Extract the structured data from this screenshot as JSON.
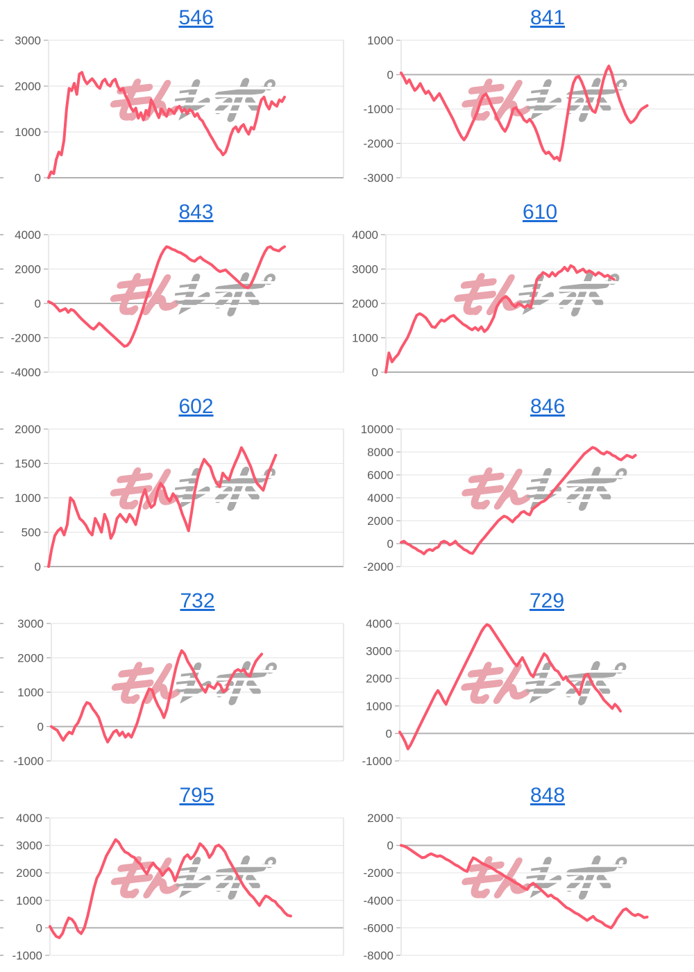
{
  "style": {
    "background": "#ffffff",
    "line_color": "#fa586e",
    "grid_color": "#e7e7e7",
    "zero_line_color": "#b0b0b0",
    "axis_border_color": "#dadada",
    "tick_color": "#a8a8a8",
    "label_color": "#595959",
    "title_link_color": "#1c6cd6"
  },
  "watermark": {
    "text": "みんレポ",
    "pink_color": "#eaa4ad",
    "gray_color": "#a9a9a9"
  },
  "chart_data": [
    {
      "title": "546",
      "type": "line",
      "legend": "none",
      "grid": "on",
      "yticks": [
        3000,
        2000,
        1000,
        0
      ],
      "ylim": [
        0,
        3000
      ],
      "x_span": 0.8,
      "values": [
        0,
        130,
        90,
        400,
        560,
        500,
        820,
        1500,
        1950,
        1900,
        2060,
        1820,
        2260,
        2300,
        2140,
        2050,
        2110,
        2160,
        2090,
        2000,
        1950,
        2100,
        2150,
        2040,
        2000,
        2110,
        2150,
        1990,
        1900,
        1950,
        1790,
        1690,
        1540,
        1450,
        1520,
        1300,
        1420,
        1260,
        1470,
        1360,
        1700,
        1590,
        1440,
        1310,
        1500,
        1410,
        1340,
        1500,
        1460,
        1400,
        1520,
        1560,
        1440,
        1500,
        1400,
        1490,
        1450,
        1340,
        1400,
        1290,
        1240,
        1130,
        1040,
        930,
        840,
        740,
        640,
        590,
        500,
        560,
        720,
        920,
        1060,
        1110,
        1000,
        1110,
        1160,
        1040,
        950,
        1100,
        1060,
        1260,
        1510,
        1700,
        1760,
        1590,
        1500,
        1660,
        1600,
        1560,
        1700,
        1660,
        1760
      ]
    },
    {
      "title": "841",
      "type": "line",
      "legend": "none",
      "grid": "on",
      "yticks": [
        1000,
        0,
        -1000,
        -2000,
        -3000
      ],
      "ylim": [
        -3000,
        1000
      ],
      "x_span": 0.84,
      "values": [
        50,
        -80,
        -250,
        -150,
        -320,
        -460,
        -380,
        -260,
        -420,
        -550,
        -480,
        -600,
        -750,
        -650,
        -550,
        -700,
        -850,
        -1000,
        -1150,
        -1300,
        -1480,
        -1650,
        -1800,
        -1900,
        -1780,
        -1600,
        -1420,
        -1250,
        -1050,
        -800,
        -620,
        -560,
        -700,
        -900,
        -1050,
        -1250,
        -1400,
        -1550,
        -1650,
        -1500,
        -1280,
        -1000,
        -960,
        -1080,
        -1180,
        -1320,
        -1380,
        -1300,
        -1400,
        -1550,
        -1750,
        -2000,
        -2200,
        -2300,
        -2250,
        -2350,
        -2450,
        -2400,
        -2500,
        -2100,
        -1600,
        -1100,
        -600,
        -250,
        -80,
        -50,
        -200,
        -400,
        -650,
        -900,
        -1050,
        -1100,
        -850,
        -500,
        -150,
        100,
        250,
        50,
        -250,
        -500,
        -750,
        -950,
        -1150,
        -1300,
        -1400,
        -1350,
        -1250,
        -1100,
        -1000,
        -950,
        -900
      ]
    },
    {
      "title": "843",
      "type": "line",
      "legend": "none",
      "grid": "on",
      "yticks": [
        4000,
        2000,
        0,
        -2000,
        -4000
      ],
      "ylim": [
        -4000,
        4000
      ],
      "x_span": 0.8,
      "values": [
        100,
        30,
        -80,
        -250,
        -450,
        -380,
        -300,
        -520,
        -350,
        -420,
        -600,
        -780,
        -950,
        -1100,
        -1250,
        -1400,
        -1500,
        -1350,
        -1150,
        -1280,
        -1450,
        -1600,
        -1750,
        -1900,
        -2050,
        -2200,
        -2350,
        -2500,
        -2450,
        -2250,
        -1900,
        -1500,
        -1050,
        -600,
        -100,
        400,
        900,
        1400,
        1900,
        2400,
        2800,
        3100,
        3300,
        3250,
        3150,
        3100,
        3000,
        2950,
        2850,
        2750,
        2600,
        2500,
        2450,
        2600,
        2700,
        2550,
        2450,
        2350,
        2250,
        2100,
        1950,
        1850,
        1900,
        1950,
        1800,
        1650,
        1500,
        1350,
        1200,
        1050,
        950,
        900,
        1100,
        1450,
        1850,
        2250,
        2650,
        3000,
        3250,
        3300,
        3150,
        3100,
        3050,
        3200,
        3300
      ]
    },
    {
      "title": "610",
      "type": "line",
      "legend": "none",
      "grid": "on",
      "yticks": [
        4000,
        3000,
        2000,
        1000,
        0
      ],
      "ylim": [
        0,
        4000
      ],
      "x_span": 0.74,
      "values": [
        0,
        560,
        300,
        420,
        520,
        700,
        850,
        1000,
        1200,
        1450,
        1650,
        1700,
        1650,
        1580,
        1450,
        1320,
        1300,
        1420,
        1520,
        1480,
        1550,
        1620,
        1650,
        1560,
        1480,
        1400,
        1350,
        1280,
        1230,
        1300,
        1220,
        1320,
        1180,
        1260,
        1420,
        1600,
        1900,
        2050,
        2150,
        2200,
        2120,
        1980,
        1900,
        2000,
        1950,
        1880,
        1950,
        1880,
        2250,
        2700,
        2780,
        2900,
        2850,
        2780,
        2900,
        2800,
        2900,
        2950,
        3050,
        2950,
        3100,
        3050,
        2900,
        2950,
        3000,
        2900,
        2950,
        2900,
        2820,
        2900,
        2850,
        2780,
        2820,
        2750,
        2700
      ]
    },
    {
      "title": "602",
      "type": "line",
      "legend": "none",
      "grid": "on",
      "yticks": [
        2000,
        1500,
        1000,
        500,
        0
      ],
      "ylim": [
        0,
        2000
      ],
      "x_span": 0.77,
      "values": [
        0,
        260,
        450,
        520,
        560,
        460,
        610,
        1000,
        950,
        820,
        700,
        660,
        600,
        510,
        460,
        700,
        610,
        500,
        760,
        650,
        410,
        500,
        700,
        760,
        700,
        650,
        760,
        700,
        610,
        800,
        1000,
        1120,
        950,
        860,
        900,
        1100,
        1210,
        1150,
        1010,
        950,
        1060,
        1000,
        900,
        760,
        650,
        520,
        800,
        1100,
        1310,
        1450,
        1560,
        1500,
        1450,
        1310,
        1210,
        1160,
        1360,
        1300,
        1260,
        1400,
        1510,
        1610,
        1730,
        1650,
        1550,
        1450,
        1310,
        1210,
        1160,
        1110,
        1260,
        1400,
        1510,
        1620
      ]
    },
    {
      "title": "846",
      "type": "line",
      "legend": "none",
      "grid": "on",
      "yticks": [
        10000,
        8000,
        6000,
        4000,
        2000,
        0,
        -2000
      ],
      "ylim": [
        -2000,
        10000
      ],
      "x_span": 0.8,
      "values": [
        100,
        210,
        0,
        -110,
        -300,
        -410,
        -600,
        -710,
        -900,
        -610,
        -500,
        -610,
        -400,
        -300,
        100,
        210,
        100,
        -110,
        0,
        210,
        -110,
        -300,
        -510,
        -610,
        -800,
        -860,
        -500,
        -110,
        210,
        500,
        800,
        1110,
        1400,
        1710,
        2000,
        2210,
        2400,
        2310,
        2110,
        1900,
        2210,
        2400,
        2710,
        2810,
        2610,
        2510,
        3010,
        3210,
        3400,
        3610,
        3710,
        3910,
        4210,
        4510,
        4810,
        5110,
        5410,
        5710,
        6010,
        6310,
        6610,
        6910,
        7210,
        7510,
        7810,
        8010,
        8210,
        8400,
        8310,
        8110,
        7910,
        7810,
        8010,
        7910,
        7710,
        7610,
        7410,
        7310,
        7510,
        7710,
        7610,
        7510,
        7710
      ]
    },
    {
      "title": "732",
      "type": "line",
      "legend": "none",
      "grid": "on",
      "yticks": [
        3000,
        2000,
        1000,
        0,
        -1000
      ],
      "ylim": [
        -1000,
        3000
      ],
      "x_span": 0.72,
      "values": [
        0,
        -60,
        -110,
        -260,
        -400,
        -260,
        -160,
        -210,
        0,
        110,
        310,
        560,
        700,
        660,
        510,
        400,
        260,
        0,
        -260,
        -450,
        -310,
        -160,
        -110,
        -260,
        -160,
        -310,
        -210,
        -310,
        -110,
        110,
        400,
        700,
        900,
        1100,
        1060,
        810,
        610,
        460,
        260,
        510,
        900,
        1310,
        1700,
        2000,
        2210,
        2110,
        1900,
        1760,
        1610,
        1410,
        1260,
        1110,
        1000,
        1210,
        1160,
        1110,
        1260,
        1210,
        1010,
        1060,
        1310,
        1460,
        1610,
        1660,
        1610,
        1660,
        1510,
        1460,
        1710,
        1900,
        2010,
        2110
      ]
    },
    {
      "title": "729",
      "type": "line",
      "legend": "none",
      "grid": "on",
      "yticks": [
        4000,
        3000,
        2000,
        1000,
        0,
        -1000
      ],
      "ylim": [
        -1000,
        4000
      ],
      "x_span": 0.75,
      "values": [
        50,
        -110,
        -310,
        -560,
        -410,
        -210,
        0,
        210,
        410,
        610,
        810,
        1010,
        1210,
        1410,
        1560,
        1410,
        1210,
        1060,
        1310,
        1510,
        1710,
        1910,
        2110,
        2310,
        2510,
        2710,
        2910,
        3110,
        3310,
        3510,
        3710,
        3860,
        3960,
        3910,
        3760,
        3610,
        3460,
        3310,
        3160,
        3010,
        2860,
        2710,
        2560,
        2460,
        2610,
        2760,
        2560,
        2360,
        2160,
        2060,
        2310,
        2510,
        2710,
        2900,
        2810,
        2610,
        2460,
        2310,
        2260,
        2110,
        1960,
        2060,
        1910,
        1810,
        1710,
        1560,
        1410,
        1810,
        2110,
        2160,
        1960,
        1760,
        1610,
        1510,
        1360,
        1210,
        1110,
        1010,
        910,
        1060,
        960,
        810
      ]
    },
    {
      "title": "795",
      "type": "line",
      "legend": "none",
      "grid": "on",
      "yticks": [
        4000,
        3000,
        2000,
        1000,
        0,
        -1000
      ],
      "ylim": [
        -1000,
        4000
      ],
      "x_span": 0.82,
      "values": [
        50,
        -160,
        -310,
        -360,
        -210,
        110,
        360,
        310,
        160,
        -110,
        -210,
        0,
        410,
        910,
        1410,
        1810,
        2010,
        2310,
        2610,
        2810,
        3010,
        3210,
        3110,
        2910,
        2760,
        2710,
        2610,
        2560,
        2410,
        2310,
        2110,
        1960,
        2210,
        2360,
        2210,
        2110,
        1910,
        2060,
        2160,
        2010,
        1710,
        2010,
        2310,
        2560,
        2660,
        2510,
        2610,
        2810,
        3060,
        2960,
        2810,
        2560,
        2710,
        2960,
        3010,
        2910,
        2760,
        2510,
        2310,
        2110,
        1910,
        1710,
        1510,
        1360,
        1210,
        1110,
        960,
        810,
        1010,
        1160,
        1110,
        1010,
        960,
        810,
        710,
        560,
        460,
        430
      ]
    },
    {
      "title": "848",
      "type": "line",
      "legend": "none",
      "grid": "on",
      "yticks": [
        2000,
        0,
        -2000,
        -4000,
        -6000,
        -8000
      ],
      "ylim": [
        -8000,
        2000
      ],
      "x_span": 0.84,
      "values": [
        0,
        -60,
        -160,
        -310,
        -460,
        -610,
        -760,
        -900,
        -860,
        -710,
        -610,
        -710,
        -810,
        -760,
        -860,
        -1010,
        -1110,
        -1260,
        -1410,
        -1510,
        -1660,
        -1810,
        -1900,
        -1310,
        -910,
        -1010,
        -1160,
        -1310,
        -1410,
        -1510,
        -1610,
        -1760,
        -1910,
        -2010,
        -2160,
        -2310,
        -2410,
        -2560,
        -2710,
        -2810,
        -2960,
        -3110,
        -3210,
        -2910,
        -2760,
        -2910,
        -3110,
        -3310,
        -3510,
        -3710,
        -3610,
        -3810,
        -3910,
        -4110,
        -4310,
        -4510,
        -4610,
        -4760,
        -4910,
        -5010,
        -5160,
        -5310,
        -5460,
        -5310,
        -5160,
        -5410,
        -5510,
        -5610,
        -5810,
        -5910,
        -6010,
        -5710,
        -5310,
        -5010,
        -4710,
        -4610,
        -4810,
        -5010,
        -5110,
        -5010,
        -5110,
        -5260,
        -5210
      ]
    }
  ]
}
